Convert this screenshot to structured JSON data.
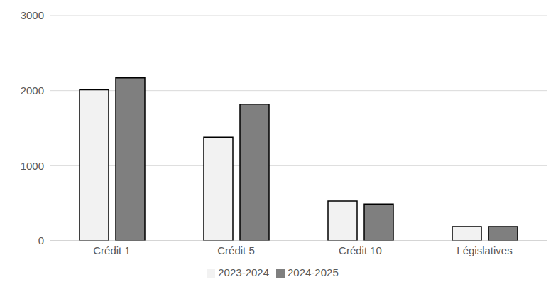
{
  "chart_data": {
    "type": "bar",
    "categories": [
      "Crédit 1",
      "Crédit 5",
      "Crédit 10",
      "Législatives"
    ],
    "series": [
      {
        "name": "2023-2024",
        "color": "#f2f2f2",
        "values": [
          2010,
          1380,
          530,
          190
        ]
      },
      {
        "name": "2024-2025",
        "color": "#7f7f7f",
        "values": [
          2170,
          1820,
          490,
          190
        ]
      }
    ],
    "ylim": [
      0,
      3000
    ],
    "yticks": [
      0,
      1000,
      2000,
      3000
    ],
    "grid": true,
    "legend": "bottom"
  }
}
